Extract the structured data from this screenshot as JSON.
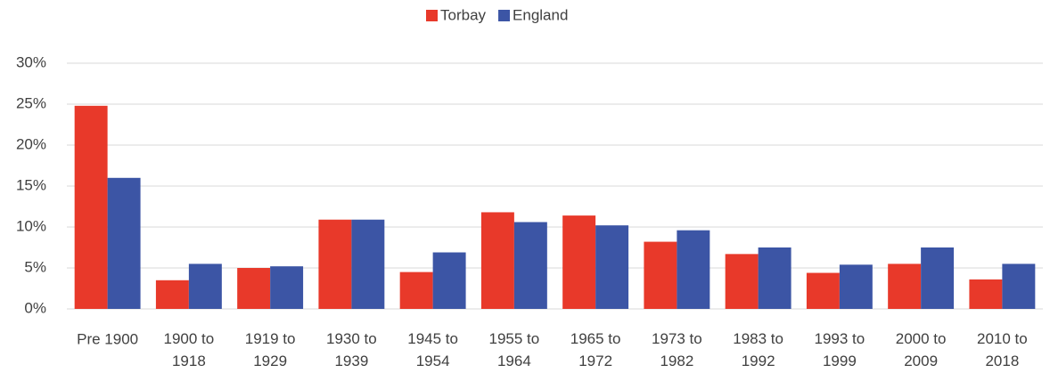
{
  "chart_data": {
    "type": "bar",
    "categories": [
      "Pre 1900",
      "1900 to 1918",
      "1919 to 1929",
      "1930 to 1939",
      "1945 to 1954",
      "1955 to 1964",
      "1965 to 1972",
      "1973 to 1982",
      "1983 to 1992",
      "1993 to 1999",
      "2000 to 2009",
      "2010 to 2018"
    ],
    "series": [
      {
        "name": "Torbay",
        "color": "#e8392a",
        "values": [
          24.8,
          3.5,
          5.0,
          10.9,
          4.5,
          11.8,
          11.4,
          8.2,
          6.7,
          4.4,
          5.5,
          3.6
        ]
      },
      {
        "name": "England",
        "color": "#3c55a5",
        "values": [
          16.0,
          5.5,
          5.2,
          10.9,
          6.9,
          10.6,
          10.2,
          9.6,
          7.5,
          5.4,
          7.5,
          5.5
        ]
      }
    ],
    "ylim": [
      0,
      30
    ],
    "yticks": [
      {
        "value": 0,
        "label": "0%"
      },
      {
        "value": 5,
        "label": "5%"
      },
      {
        "value": 10,
        "label": "10%"
      },
      {
        "value": 15,
        "label": "15%"
      },
      {
        "value": 20,
        "label": "20%"
      },
      {
        "value": 25,
        "label": "25%"
      },
      {
        "value": 30,
        "label": "30%"
      }
    ],
    "grid": true,
    "legend": "top"
  }
}
